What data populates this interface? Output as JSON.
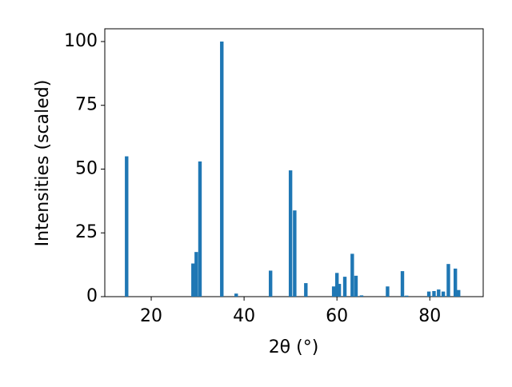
{
  "chart_data": {
    "type": "bar",
    "x_label": "2θ (°)",
    "y_label": "Intensities (scaled)",
    "color": "#1f77b4",
    "x": [
      14.7,
      29.0,
      29.7,
      30.5,
      35.2,
      38.3,
      45.7,
      50.0,
      50.9,
      53.3,
      59.3,
      60.0,
      60.5,
      61.7,
      63.3,
      64.1,
      65.3,
      70.9,
      74.1,
      75.0,
      79.8,
      80.9,
      81.9,
      82.9,
      84.0,
      85.5,
      86.2
    ],
    "values": [
      55,
      13,
      17.5,
      53,
      100,
      1.2,
      10.2,
      49.5,
      33.8,
      5.3,
      4,
      9.3,
      5,
      7.8,
      16.8,
      8.2,
      0.5,
      4,
      10,
      0.4,
      2,
      2.2,
      2.8,
      2,
      12.8,
      11,
      2.6
    ],
    "xlim": [
      10,
      91.5
    ],
    "ylim": [
      0,
      105
    ],
    "xticks": [
      20,
      40,
      60,
      80
    ],
    "yticks": [
      0,
      25,
      50,
      75,
      100
    ]
  }
}
